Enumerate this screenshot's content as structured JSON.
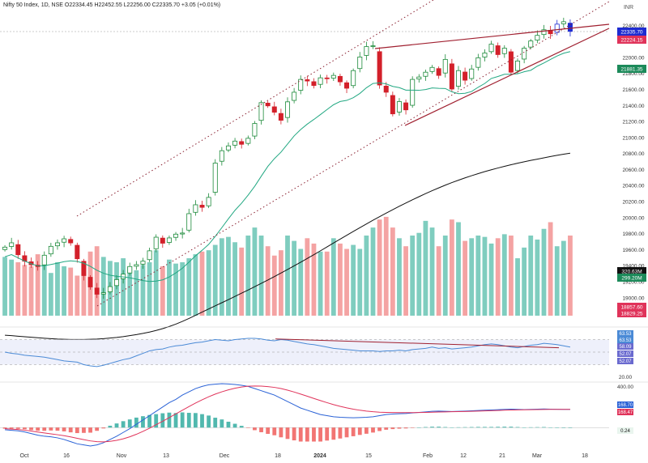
{
  "header": {
    "symbol": "Nifty 50 Index, 1D, NSE",
    "ohlc": "O22334.45 H22452.55 L22256.00 C22335.70 +3.05 (+0.01%)"
  },
  "currency": "INR",
  "chart_data": {
    "type": "candlestick",
    "price_axis": {
      "ticks": [
        "22400.00",
        "22000.00",
        "21800.00",
        "21600.00",
        "21400.00",
        "21200.00",
        "21000.00",
        "20800.00",
        "20600.00",
        "20400.00",
        "20200.00",
        "20000.00",
        "19800.00",
        "19600.00",
        "19400.00",
        "19200.00",
        "19000.00"
      ],
      "ylim": [
        18760,
        22580
      ]
    },
    "x_axis_labels": [
      "Oct",
      "16",
      "Nov",
      "13",
      "Dec",
      "18",
      "2024",
      "15",
      "Feb",
      "12",
      "21",
      "Mar",
      "18"
    ],
    "price_labels": [
      {
        "text": "22335.70",
        "color": "#1e2bd1"
      },
      {
        "text": "22224.15",
        "color": "#e0335a"
      },
      {
        "text": "21881.35",
        "color": "#1c8a5a"
      },
      {
        "text": "320.63M",
        "color": "#111111"
      },
      {
        "text": "299.20M",
        "color": "#1c8a5a"
      },
      {
        "text": "18857.60",
        "color": "#e0335a"
      },
      {
        "text": "18829.25",
        "color": "#e0335a"
      }
    ],
    "series": [
      {
        "name": "Close",
        "values": [
          19636,
          19690,
          19541,
          19460,
          19415,
          19393,
          19535,
          19646,
          19690,
          19740,
          19689,
          19491,
          19281,
          19139,
          19048,
          19067,
          19143,
          19231,
          19299,
          19394,
          19417,
          19461,
          19590,
          19760,
          19685,
          19751,
          19798,
          19812,
          20054,
          20165,
          20133,
          20257,
          20685,
          20840,
          20900,
          20960,
          20920,
          20995,
          21180,
          21440,
          21400,
          21320,
          21220,
          21450,
          21570,
          21730,
          21710,
          21654,
          21750,
          21740,
          21780,
          21700,
          21620,
          21840,
          22010,
          22140,
          22150,
          21660,
          21570,
          21300,
          21453,
          21350,
          21730,
          21760,
          21820,
          21880,
          21780,
          21980,
          21610,
          21840,
          21720,
          21860,
          22000,
          22060,
          22170,
          22040,
          22120,
          21820,
          21960,
          22120,
          22210,
          22280,
          22350,
          22300,
          22420,
          22450,
          22330
        ]
      },
      {
        "name": "EMA 200",
        "values": [
          19598,
          19592,
          19585,
          19578,
          19572,
          19566,
          19560,
          19555,
          19550,
          19547,
          19545,
          19544,
          19545,
          19547,
          19550,
          19555,
          19562,
          19570,
          19580,
          19592,
          19605,
          19620,
          19637,
          19657,
          19680,
          19706,
          19736,
          19770,
          19807,
          19846,
          19886,
          19925,
          19964,
          20003,
          20042,
          20082,
          20122,
          20162,
          20203,
          20245,
          20287,
          20330,
          20374,
          20418,
          20463,
          20509,
          20556,
          20603,
          20651,
          20700,
          20749,
          20797,
          20845,
          20893,
          20940,
          20987,
          21033,
          21078,
          21122,
          21165,
          21207,
          21248,
          21288,
          21327,
          21365,
          21402,
          21437,
          21471,
          21503,
          21533,
          21562,
          21589,
          21615,
          21640,
          21663,
          21685,
          21706,
          21726,
          21745,
          21763,
          21780,
          21796,
          21812,
          21828,
          21843,
          21857,
          21870
        ]
      },
      {
        "name": "Volume",
        "values": [
          220,
          210,
          200,
          190,
          185,
          230,
          195,
          160,
          200,
          185,
          180,
          150,
          190,
          240,
          260,
          220,
          205,
          200,
          215,
          180,
          170,
          190,
          200,
          245,
          185,
          210,
          195,
          200,
          215,
          230,
          240,
          245,
          265,
          290,
          295,
          275,
          255,
          300,
          330,
          300,
          260,
          225,
          245,
          300,
          280,
          250,
          290,
          270,
          240,
          240,
          290,
          270,
          250,
          265,
          250,
          300,
          330,
          360,
          370,
          330,
          290,
          260,
          300,
          310,
          355,
          330,
          260,
          300,
          360,
          350,
          280,
          290,
          300,
          295,
          270,
          290,
          305,
          300,
          215,
          255,
          300,
          285,
          325,
          350,
          260,
          280,
          300
        ]
      },
      {
        "name": "RSI",
        "values": [
          50,
          48,
          47,
          45,
          44,
          43,
          42,
          40,
          38,
          36,
          35,
          34,
          30,
          28,
          27,
          29,
          32,
          35,
          38,
          40,
          44,
          48,
          52,
          54,
          55,
          58,
          60,
          61,
          63,
          65,
          66,
          68,
          70,
          69,
          68,
          70,
          71,
          72,
          72,
          71,
          69,
          68,
          70,
          69,
          67,
          65,
          63,
          62,
          60,
          58,
          56,
          55,
          54,
          53,
          52,
          52,
          52,
          51,
          52,
          52,
          53,
          52,
          54,
          55,
          56,
          58,
          56,
          57,
          55,
          56,
          57,
          58,
          60,
          62,
          63,
          62,
          60,
          58,
          57,
          59,
          61,
          62,
          64,
          63,
          62,
          60,
          58
        ]
      },
      {
        "name": "MACD",
        "values": [
          -20,
          -25,
          -30,
          -40,
          -55,
          -70,
          -80,
          -85,
          -95,
          -110,
          -130,
          -150,
          -160,
          -170,
          -160,
          -140,
          -110,
          -80,
          -45,
          -10,
          30,
          70,
          110,
          150,
          190,
          230,
          260,
          300,
          330,
          360,
          380,
          395,
          400,
          405,
          402,
          398,
          390,
          380,
          360,
          340,
          320,
          300,
          270,
          240,
          210,
          180,
          160,
          140,
          120,
          110,
          100,
          95,
          92,
          90,
          92,
          95,
          100,
          110,
          120,
          125,
          128,
          130,
          135,
          140,
          145,
          150,
          152,
          150,
          148,
          150,
          152,
          155,
          158,
          160,
          162,
          165,
          168,
          170,
          168,
          166,
          168,
          170,
          172,
          170,
          169,
          168,
          168
        ]
      },
      {
        "name": "Signal",
        "values": [
          -10,
          -14,
          -18,
          -24,
          -32,
          -41,
          -50,
          -58,
          -66,
          -75,
          -86,
          -99,
          -111,
          -123,
          -130,
          -132,
          -127,
          -118,
          -104,
          -85,
          -62,
          -35,
          -6,
          26,
          58,
          92,
          126,
          160,
          194,
          226,
          256,
          284,
          309,
          330,
          348,
          363,
          374,
          382,
          384,
          383,
          378,
          371,
          360,
          345,
          328,
          309,
          289,
          269,
          249,
          230,
          212,
          196,
          182,
          170,
          160,
          152,
          146,
          142,
          140,
          139,
          138,
          138,
          138,
          139,
          140,
          142,
          144,
          145,
          146,
          147,
          148,
          150,
          152,
          154,
          156,
          158,
          160,
          162,
          163,
          164,
          165,
          166,
          167,
          168,
          168,
          168,
          168
        ]
      }
    ],
    "rsi_labels": [
      "63.53",
      "63.53",
      "58.09",
      "52.07",
      "52.07"
    ],
    "rsi_axis_labels": [
      "20.00"
    ],
    "macd_axis_labels": [
      "400.00",
      "0.24"
    ],
    "macd_labels": [
      "168.70",
      "168.47"
    ],
    "colors": {
      "up": "#1c8a3a",
      "down": "#d3202a",
      "blue_candle": "#1e2bd1",
      "ema50": "#22a882",
      "ema200": "#111111",
      "vol_up": "#7fcdbf",
      "vol_down": "#f4a3a3",
      "trend": "#a02030",
      "rsi": "#4a8ad6",
      "macd": "#2a62d6",
      "signal": "#e0335a"
    }
  }
}
